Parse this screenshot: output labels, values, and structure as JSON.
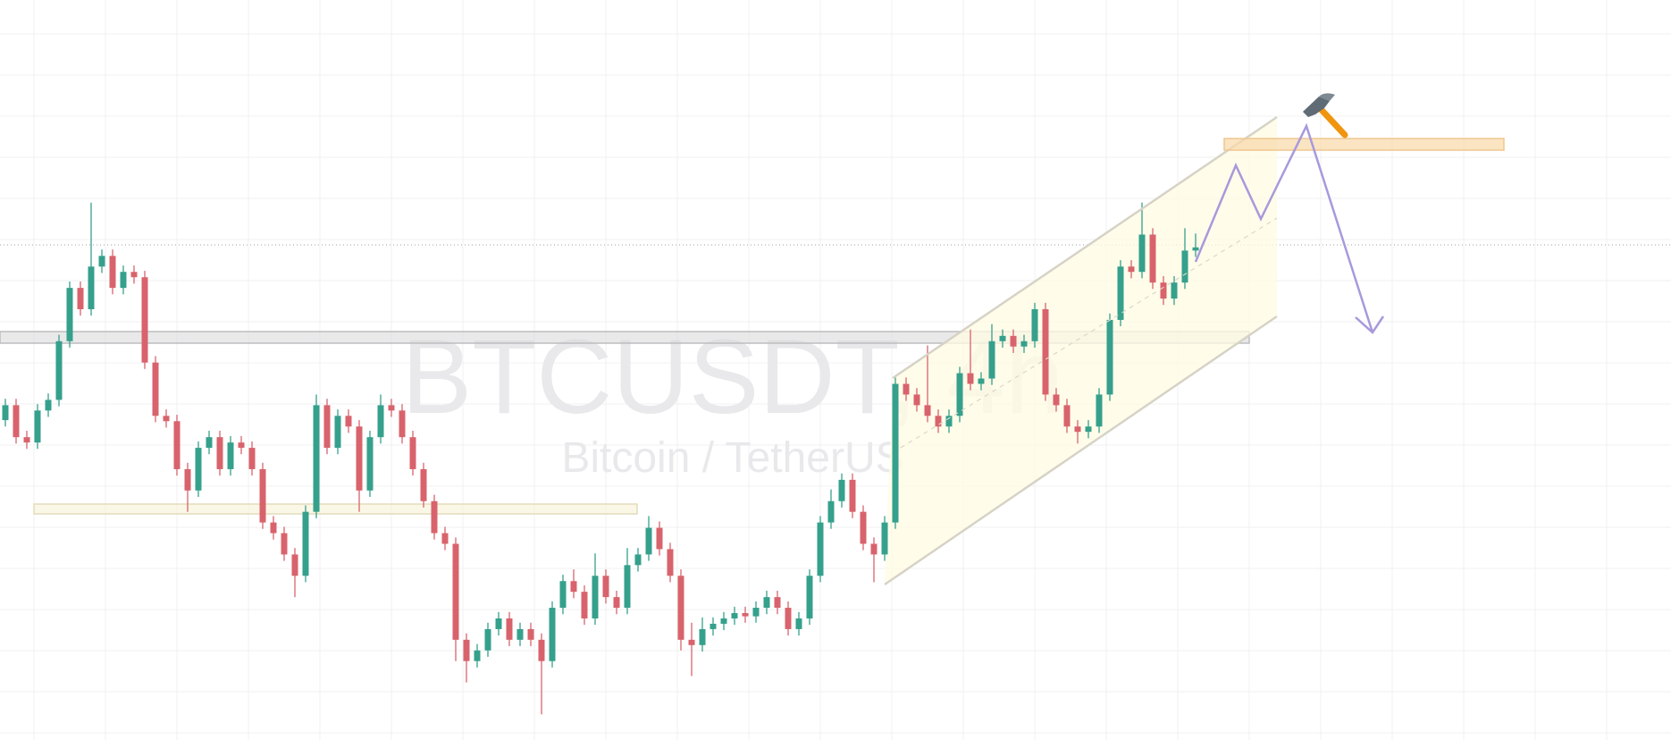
{
  "chart_data": {
    "type": "candlestick",
    "title": "BTCUSDT, 4h",
    "subtitle": "Bitcoin / TetherUS",
    "up_color": "#35a08c",
    "down_color": "#d8636c",
    "ylim": [
      0,
      694
    ],
    "ohlc": [
      [
        300,
        320,
        294,
        314
      ],
      [
        314,
        320,
        278,
        284
      ],
      [
        284,
        290,
        273,
        279
      ],
      [
        279,
        315,
        273,
        309
      ],
      [
        309,
        325,
        303,
        319
      ],
      [
        319,
        380,
        313,
        374
      ],
      [
        374,
        430,
        368,
        424
      ],
      [
        424,
        430,
        398,
        404
      ],
      [
        404,
        504,
        398,
        444
      ],
      [
        444,
        460,
        438,
        454
      ],
      [
        454,
        460,
        418,
        424
      ],
      [
        424,
        445,
        418,
        439
      ],
      [
        439,
        445,
        428,
        434
      ],
      [
        434,
        440,
        348,
        354
      ],
      [
        354,
        360,
        298,
        304
      ],
      [
        304,
        310,
        293,
        299
      ],
      [
        299,
        305,
        248,
        254
      ],
      [
        254,
        260,
        214,
        234
      ],
      [
        234,
        280,
        228,
        274
      ],
      [
        274,
        290,
        268,
        284
      ],
      [
        284,
        290,
        248,
        254
      ],
      [
        254,
        285,
        248,
        279
      ],
      [
        279,
        285,
        268,
        274
      ],
      [
        274,
        280,
        248,
        254
      ],
      [
        254,
        260,
        198,
        204
      ],
      [
        204,
        210,
        188,
        194
      ],
      [
        194,
        200,
        168,
        174
      ],
      [
        174,
        180,
        134,
        154
      ],
      [
        154,
        220,
        148,
        214
      ],
      [
        214,
        324,
        208,
        314
      ],
      [
        314,
        320,
        268,
        274
      ],
      [
        274,
        310,
        268,
        304
      ],
      [
        304,
        310,
        288,
        294
      ],
      [
        294,
        300,
        214,
        234
      ],
      [
        234,
        290,
        228,
        284
      ],
      [
        284,
        324,
        278,
        314
      ],
      [
        314,
        320,
        303,
        309
      ],
      [
        309,
        315,
        278,
        284
      ],
      [
        284,
        290,
        248,
        254
      ],
      [
        254,
        260,
        218,
        224
      ],
      [
        224,
        230,
        188,
        194
      ],
      [
        194,
        200,
        178,
        184
      ],
      [
        184,
        190,
        74,
        94
      ],
      [
        94,
        100,
        54,
        74
      ],
      [
        74,
        90,
        68,
        84
      ],
      [
        84,
        110,
        78,
        104
      ],
      [
        104,
        120,
        98,
        114
      ],
      [
        114,
        120,
        88,
        94
      ],
      [
        94,
        110,
        88,
        104
      ],
      [
        104,
        110,
        88,
        94
      ],
      [
        94,
        100,
        24,
        74
      ],
      [
        74,
        130,
        68,
        124
      ],
      [
        124,
        155,
        118,
        149
      ],
      [
        149,
        160,
        133,
        139
      ],
      [
        139,
        145,
        108,
        114
      ],
      [
        114,
        175,
        108,
        154
      ],
      [
        154,
        160,
        128,
        134
      ],
      [
        134,
        140,
        118,
        124
      ],
      [
        124,
        180,
        118,
        164
      ],
      [
        164,
        180,
        158,
        174
      ],
      [
        174,
        210,
        168,
        199
      ],
      [
        199,
        205,
        173,
        179
      ],
      [
        179,
        185,
        148,
        154
      ],
      [
        154,
        160,
        84,
        94
      ],
      [
        94,
        110,
        60,
        89
      ],
      [
        89,
        115,
        83,
        104
      ],
      [
        104,
        115,
        98,
        109
      ],
      [
        109,
        120,
        103,
        114
      ],
      [
        114,
        125,
        108,
        119
      ],
      [
        119,
        125,
        110,
        116
      ],
      [
        116,
        130,
        110,
        124
      ],
      [
        124,
        140,
        118,
        134
      ],
      [
        134,
        140,
        118,
        124
      ],
      [
        124,
        130,
        98,
        104
      ],
      [
        104,
        120,
        98,
        114
      ],
      [
        114,
        160,
        108,
        154
      ],
      [
        154,
        210,
        148,
        204
      ],
      [
        204,
        235,
        198,
        224
      ],
      [
        224,
        250,
        218,
        244
      ],
      [
        244,
        250,
        208,
        214
      ],
      [
        214,
        220,
        178,
        184
      ],
      [
        184,
        190,
        148,
        174
      ],
      [
        174,
        210,
        168,
        204
      ],
      [
        204,
        340,
        198,
        334
      ],
      [
        334,
        340,
        318,
        324
      ],
      [
        324,
        330,
        308,
        314
      ],
      [
        314,
        370,
        298,
        304
      ],
      [
        304,
        310,
        288,
        294
      ],
      [
        294,
        310,
        288,
        304
      ],
      [
        304,
        350,
        298,
        344
      ],
      [
        344,
        385,
        328,
        334
      ],
      [
        334,
        345,
        328,
        339
      ],
      [
        339,
        390,
        333,
        374
      ],
      [
        374,
        385,
        368,
        379
      ],
      [
        379,
        385,
        363,
        369
      ],
      [
        369,
        380,
        363,
        374
      ],
      [
        374,
        410,
        368,
        404
      ],
      [
        404,
        410,
        318,
        324
      ],
      [
        324,
        330,
        308,
        314
      ],
      [
        314,
        320,
        288,
        294
      ],
      [
        294,
        300,
        278,
        289
      ],
      [
        289,
        300,
        283,
        294
      ],
      [
        294,
        330,
        288,
        324
      ],
      [
        324,
        400,
        318,
        394
      ],
      [
        394,
        450,
        388,
        444
      ],
      [
        444,
        450,
        433,
        439
      ],
      [
        439,
        504,
        433,
        474
      ],
      [
        474,
        480,
        423,
        429
      ],
      [
        429,
        435,
        408,
        414
      ],
      [
        414,
        435,
        408,
        429
      ],
      [
        429,
        480,
        423,
        459
      ],
      [
        459,
        475,
        453,
        462
      ]
    ]
  }
}
